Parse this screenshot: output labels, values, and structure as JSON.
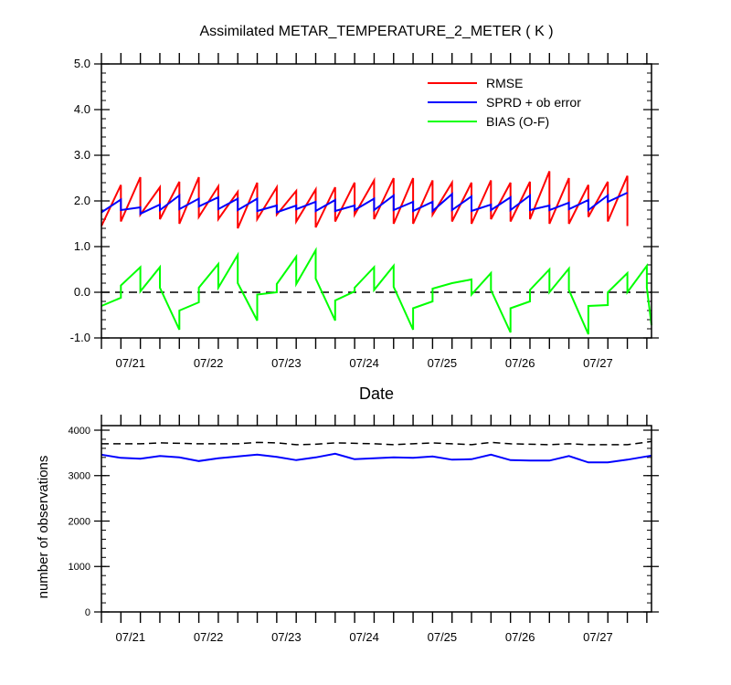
{
  "title": "Assimilated METAR_TEMPERATURE_2_METER ( K )",
  "date_ticks": [
    "07/21",
    "07/22",
    "07/23",
    "07/24",
    "07/25",
    "07/26",
    "07/27"
  ],
  "chart_data": [
    {
      "type": "line",
      "title": "Assimilated METAR_TEMPERATURE_2_METER ( K )",
      "xlabel": "Date",
      "ylabel": "",
      "ylim": [
        -1.0,
        5.0
      ],
      "yticks": [
        "-1.0",
        "0.0",
        "1.0",
        "2.0",
        "3.0",
        "4.0",
        "5.0"
      ],
      "ytick_values": [
        -1,
        0,
        1,
        2,
        3,
        4,
        5
      ],
      "xlim": [
        0,
        7.06
      ],
      "xtick_positions": [
        0.08,
        1.08,
        2.08,
        3.08,
        4.08,
        5.08,
        6.08
      ],
      "xtick_labels": [
        "07/21",
        "07/22",
        "07/23",
        "07/24",
        "07/25",
        "07/26",
        "07/27"
      ],
      "legend_position": "top-right",
      "zero_line": "dashed",
      "series": [
        {
          "name": "RMSE",
          "color": "#ff0000",
          "points": [
            [
              0,
              1.45
            ],
            [
              0.25,
              2.35
            ],
            [
              0.25,
              1.55
            ],
            [
              0.5,
              2.52
            ],
            [
              0.5,
              1.7
            ],
            [
              0.75,
              2.3
            ],
            [
              0.75,
              1.6
            ],
            [
              1.0,
              2.42
            ],
            [
              1.0,
              1.5
            ],
            [
              1.25,
              2.52
            ],
            [
              1.25,
              1.65
            ],
            [
              1.5,
              2.32
            ],
            [
              1.5,
              1.6
            ],
            [
              1.75,
              2.2
            ],
            [
              1.75,
              1.4
            ],
            [
              2.0,
              2.4
            ],
            [
              2.0,
              1.6
            ],
            [
              2.25,
              2.3
            ],
            [
              2.25,
              1.7
            ],
            [
              2.5,
              2.22
            ],
            [
              2.5,
              1.55
            ],
            [
              2.75,
              2.25
            ],
            [
              2.75,
              1.42
            ],
            [
              3.0,
              2.3
            ],
            [
              3.0,
              1.55
            ],
            [
              3.25,
              2.4
            ],
            [
              3.25,
              1.7
            ],
            [
              3.5,
              2.45
            ],
            [
              3.5,
              1.6
            ],
            [
              3.75,
              2.5
            ],
            [
              3.75,
              1.5
            ],
            [
              4.0,
              2.5
            ],
            [
              4.0,
              1.5
            ],
            [
              4.25,
              2.45
            ],
            [
              4.25,
              1.7
            ],
            [
              4.5,
              2.4
            ],
            [
              4.5,
              1.55
            ],
            [
              4.75,
              2.4
            ],
            [
              4.75,
              1.5
            ],
            [
              5.0,
              2.45
            ],
            [
              5.0,
              1.6
            ],
            [
              5.25,
              2.4
            ],
            [
              5.25,
              1.55
            ],
            [
              5.5,
              2.42
            ],
            [
              5.5,
              1.6
            ],
            [
              5.75,
              2.65
            ],
            [
              5.75,
              1.5
            ],
            [
              6.0,
              2.5
            ],
            [
              6.0,
              1.5
            ],
            [
              6.25,
              2.35
            ],
            [
              6.25,
              1.65
            ],
            [
              6.5,
              2.42
            ],
            [
              6.5,
              1.55
            ],
            [
              6.75,
              2.55
            ],
            [
              6.75,
              1.45
            ]
          ]
        },
        {
          "name": "SPRD + ob error",
          "color": "#0000ff",
          "points": [
            [
              0,
              1.75
            ],
            [
              0.25,
              2.03
            ],
            [
              0.25,
              1.8
            ],
            [
              0.5,
              1.86
            ],
            [
              0.5,
              1.72
            ],
            [
              0.75,
              1.92
            ],
            [
              0.75,
              1.8
            ],
            [
              1.0,
              2.12
            ],
            [
              1.0,
              1.82
            ],
            [
              1.25,
              2.05
            ],
            [
              1.25,
              1.88
            ],
            [
              1.5,
              2.08
            ],
            [
              1.5,
              1.82
            ],
            [
              1.75,
              2.05
            ],
            [
              1.75,
              1.8
            ],
            [
              2.0,
              2.05
            ],
            [
              2.0,
              1.78
            ],
            [
              2.25,
              1.9
            ],
            [
              2.25,
              1.75
            ],
            [
              2.5,
              1.9
            ],
            [
              2.5,
              1.82
            ],
            [
              2.75,
              1.98
            ],
            [
              2.75,
              1.78
            ],
            [
              3.0,
              2.02
            ],
            [
              3.0,
              1.78
            ],
            [
              3.25,
              1.9
            ],
            [
              3.25,
              1.8
            ],
            [
              3.5,
              2.05
            ],
            [
              3.5,
              1.8
            ],
            [
              3.75,
              2.12
            ],
            [
              3.75,
              1.8
            ],
            [
              4.0,
              1.98
            ],
            [
              4.0,
              1.78
            ],
            [
              4.25,
              1.98
            ],
            [
              4.25,
              1.78
            ],
            [
              4.5,
              2.15
            ],
            [
              4.5,
              1.8
            ],
            [
              4.75,
              2.1
            ],
            [
              4.75,
              1.78
            ],
            [
              5.0,
              1.92
            ],
            [
              5.0,
              1.8
            ],
            [
              5.25,
              2.08
            ],
            [
              5.25,
              1.8
            ],
            [
              5.5,
              2.12
            ],
            [
              5.5,
              1.8
            ],
            [
              5.75,
              1.9
            ],
            [
              5.75,
              1.8
            ],
            [
              6.0,
              1.96
            ],
            [
              6.0,
              1.82
            ],
            [
              6.25,
              2.02
            ],
            [
              6.25,
              1.8
            ],
            [
              6.5,
              2.12
            ],
            [
              6.5,
              1.98
            ],
            [
              6.75,
              2.18
            ]
          ]
        },
        {
          "name": "BIAS (O-F)",
          "color": "#00ff00",
          "points": [
            [
              0,
              -0.3
            ],
            [
              0.25,
              -0.12
            ],
            [
              0.25,
              0.15
            ],
            [
              0.5,
              0.55
            ],
            [
              0.5,
              0.02
            ],
            [
              0.75,
              0.55
            ],
            [
              0.75,
              0.1
            ],
            [
              1.0,
              -0.82
            ],
            [
              1.0,
              -0.4
            ],
            [
              1.25,
              -0.22
            ],
            [
              1.25,
              0.1
            ],
            [
              1.5,
              0.62
            ],
            [
              1.5,
              0.1
            ],
            [
              1.75,
              0.82
            ],
            [
              1.75,
              0.2
            ],
            [
              2.0,
              -0.62
            ],
            [
              2.0,
              -0.05
            ],
            [
              2.25,
              0.0
            ],
            [
              2.25,
              0.18
            ],
            [
              2.5,
              0.78
            ],
            [
              2.5,
              0.18
            ],
            [
              2.75,
              0.92
            ],
            [
              2.75,
              0.3
            ],
            [
              3.0,
              -0.62
            ],
            [
              3.0,
              -0.18
            ],
            [
              3.25,
              0.02
            ],
            [
              3.25,
              0.1
            ],
            [
              3.5,
              0.55
            ],
            [
              3.5,
              0.05
            ],
            [
              3.75,
              0.58
            ],
            [
              3.75,
              0.12
            ],
            [
              4.0,
              -0.82
            ],
            [
              4.0,
              -0.35
            ],
            [
              4.25,
              -0.2
            ],
            [
              4.25,
              0.08
            ],
            [
              4.5,
              0.2
            ],
            [
              4.5,
              0.2
            ],
            [
              4.75,
              0.28
            ],
            [
              4.75,
              -0.05
            ],
            [
              5.0,
              0.42
            ],
            [
              5.0,
              0.05
            ],
            [
              5.25,
              -0.88
            ],
            [
              5.25,
              -0.35
            ],
            [
              5.5,
              -0.2
            ],
            [
              5.5,
              0.05
            ],
            [
              5.75,
              0.5
            ],
            [
              5.75,
              0.0
            ],
            [
              6.0,
              0.52
            ],
            [
              6.0,
              0.05
            ],
            [
              6.25,
              -0.92
            ],
            [
              6.25,
              -0.3
            ],
            [
              6.5,
              -0.28
            ],
            [
              6.5,
              0.0
            ],
            [
              6.75,
              0.42
            ],
            [
              6.75,
              0.0
            ],
            [
              7.0,
              0.58
            ],
            [
              7.0,
              0.1
            ],
            [
              7.06,
              -0.72
            ]
          ]
        }
      ]
    },
    {
      "type": "line",
      "title": "",
      "xlabel": "",
      "ylabel": "number of observations",
      "ylim": [
        0,
        4100
      ],
      "yticks": [
        "0",
        "1000",
        "2000",
        "3000",
        "4000"
      ],
      "ytick_values": [
        0,
        1000,
        2000,
        3000,
        4000
      ],
      "xlim": [
        0,
        7.06
      ],
      "xtick_positions": [
        0.08,
        1.08,
        2.08,
        3.08,
        4.08,
        5.08,
        6.08
      ],
      "xtick_labels": [
        "07/21",
        "07/22",
        "07/23",
        "07/24",
        "07/25",
        "07/26",
        "07/27"
      ],
      "series": [
        {
          "color": "#000000",
          "dashed": true,
          "points": [
            [
              0,
              3700
            ],
            [
              0.25,
              3700
            ],
            [
              0.5,
              3700
            ],
            [
              0.75,
              3720
            ],
            [
              1.0,
              3710
            ],
            [
              1.25,
              3700
            ],
            [
              1.5,
              3700
            ],
            [
              1.75,
              3700
            ],
            [
              2.0,
              3730
            ],
            [
              2.25,
              3720
            ],
            [
              2.5,
              3680
            ],
            [
              2.75,
              3690
            ],
            [
              3.0,
              3720
            ],
            [
              3.25,
              3710
            ],
            [
              3.5,
              3700
            ],
            [
              3.75,
              3680
            ],
            [
              4.0,
              3700
            ],
            [
              4.25,
              3720
            ],
            [
              4.5,
              3700
            ],
            [
              4.75,
              3680
            ],
            [
              5.0,
              3730
            ],
            [
              5.25,
              3700
            ],
            [
              5.5,
              3690
            ],
            [
              5.75,
              3680
            ],
            [
              6.0,
              3700
            ],
            [
              6.25,
              3680
            ],
            [
              6.5,
              3680
            ],
            [
              6.75,
              3680
            ],
            [
              7.06,
              3750
            ]
          ]
        },
        {
          "color": "#0000ff",
          "dashed": false,
          "points": [
            [
              0,
              3460
            ],
            [
              0.25,
              3390
            ],
            [
              0.5,
              3370
            ],
            [
              0.75,
              3430
            ],
            [
              1.0,
              3400
            ],
            [
              1.25,
              3320
            ],
            [
              1.5,
              3380
            ],
            [
              1.75,
              3420
            ],
            [
              2.0,
              3460
            ],
            [
              2.25,
              3410
            ],
            [
              2.5,
              3340
            ],
            [
              2.75,
              3400
            ],
            [
              3.0,
              3480
            ],
            [
              3.25,
              3360
            ],
            [
              3.5,
              3380
            ],
            [
              3.75,
              3400
            ],
            [
              4.0,
              3390
            ],
            [
              4.25,
              3420
            ],
            [
              4.5,
              3350
            ],
            [
              4.75,
              3360
            ],
            [
              5.0,
              3460
            ],
            [
              5.25,
              3340
            ],
            [
              5.5,
              3330
            ],
            [
              5.75,
              3330
            ],
            [
              6.0,
              3430
            ],
            [
              6.25,
              3290
            ],
            [
              6.5,
              3290
            ],
            [
              6.75,
              3350
            ],
            [
              7.06,
              3440
            ]
          ]
        }
      ]
    }
  ]
}
